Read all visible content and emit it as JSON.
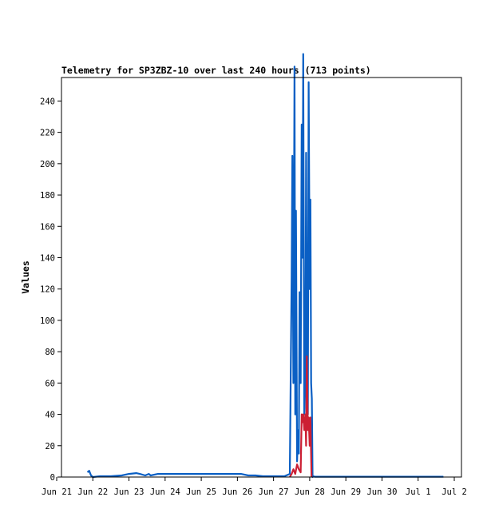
{
  "chart_data": {
    "type": "line",
    "title": "Telemetry for SP3ZBZ-10 over last 240 hours (713 points)",
    "ylabel": "Values",
    "xlabel": "",
    "ylim": [
      0,
      255
    ],
    "yticks": [
      0,
      20,
      40,
      60,
      80,
      100,
      120,
      140,
      160,
      180,
      200,
      220,
      240
    ],
    "xlim_days": [
      0,
      11
    ],
    "xticks": [
      {
        "label": "Jun 21",
        "day": 0
      },
      {
        "label": "Jun 22",
        "day": 1
      },
      {
        "label": "Jun 23",
        "day": 2
      },
      {
        "label": "Jun 24",
        "day": 3
      },
      {
        "label": "Jun 25",
        "day": 4
      },
      {
        "label": "Jun 26",
        "day": 5
      },
      {
        "label": "Jun 27",
        "day": 6
      },
      {
        "label": "Jun 28",
        "day": 7
      },
      {
        "label": "Jun 29",
        "day": 8
      },
      {
        "label": "Jun 30",
        "day": 9
      },
      {
        "label": "Jul 1",
        "day": 10
      },
      {
        "label": "Jul 2",
        "day": 11
      }
    ],
    "grid": false,
    "series": [
      {
        "color": "#0a5fc4",
        "x": [
          0.85,
          0.9,
          0.95,
          1.0,
          1.2,
          1.5,
          1.8,
          2.0,
          2.2,
          2.3,
          2.45,
          2.55,
          2.6,
          2.8,
          3.0,
          3.2,
          3.5,
          3.8,
          4.0,
          4.2,
          4.4,
          4.5,
          4.6,
          4.8,
          5.0,
          5.1,
          5.3,
          5.5,
          5.7,
          5.9,
          6.1,
          6.3,
          6.45,
          6.5,
          6.52,
          6.55,
          6.58,
          6.6,
          6.62,
          6.65,
          6.68,
          6.7,
          6.72,
          6.75,
          6.78,
          6.8,
          6.82,
          6.85,
          6.88,
          6.9,
          6.92,
          6.95,
          6.97,
          7.0,
          7.02,
          7.04,
          7.06,
          7.08,
          7.1,
          7.12,
          7.15,
          7.2,
          7.5,
          8.0,
          9.0,
          10.0,
          10.7
        ],
        "y": [
          3,
          4,
          1,
          0,
          0.5,
          0.5,
          1,
          2,
          2.5,
          2,
          1,
          2,
          1,
          2,
          2,
          2,
          2,
          2,
          2,
          2,
          2,
          2,
          2,
          2,
          2,
          2,
          1,
          1,
          0.5,
          0.5,
          0.5,
          0.5,
          2,
          128,
          205,
          60,
          262,
          40,
          170,
          10,
          30,
          15,
          118,
          60,
          225,
          140,
          270,
          40,
          60,
          207,
          100,
          40,
          252,
          120,
          177,
          60,
          50,
          0,
          0.5,
          0.3,
          0.2,
          0.2,
          0.2,
          0.2,
          0.2,
          0.2,
          0.2
        ]
      },
      {
        "color": "#cc1f33",
        "x": [
          6.45,
          6.5,
          6.55,
          6.6,
          6.65,
          6.7,
          6.75,
          6.78,
          6.8,
          6.82,
          6.85,
          6.88,
          6.9,
          6.92,
          6.95,
          6.97,
          7.0,
          7.02,
          7.05
        ],
        "y": [
          0,
          2,
          5,
          2,
          8,
          5,
          3,
          40,
          35,
          40,
          30,
          40,
          20,
          77,
          30,
          38,
          20,
          38,
          0
        ]
      }
    ]
  }
}
